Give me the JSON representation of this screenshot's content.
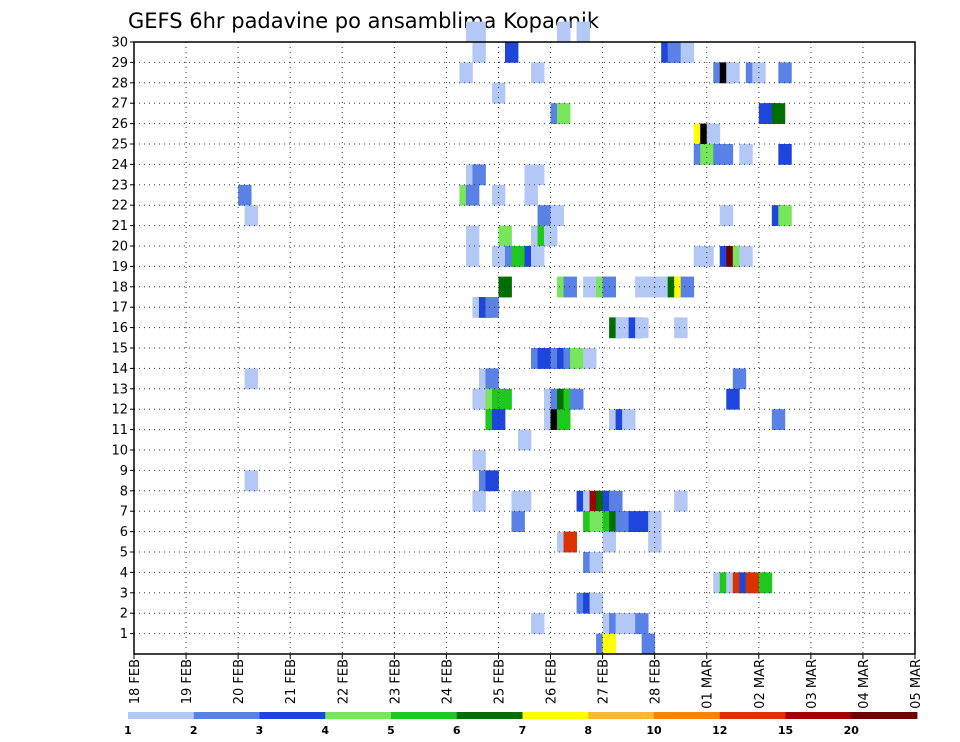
{
  "chart_data": {
    "type": "heatmap",
    "title": "GEFS 6hr padavine po ansamblima Kopaonik",
    "xlabel": "",
    "ylabel": "",
    "x_ticks": [
      "18 FEB",
      "19 FEB",
      "20 FEB",
      "21 FEB",
      "22 FEB",
      "23 FEB",
      "24 FEB",
      "25 FEB",
      "26 FEB",
      "27 FEB",
      "28 FEB",
      "01 MAR",
      "02 MAR",
      "03 MAR",
      "04 MAR",
      "05 MAR"
    ],
    "x_step_hours": 6,
    "y_ticks": [
      1,
      2,
      3,
      4,
      5,
      6,
      7,
      8,
      9,
      10,
      11,
      12,
      13,
      14,
      15,
      16,
      17,
      18,
      19,
      20,
      21,
      22,
      23,
      24,
      25,
      26,
      27,
      28,
      29,
      30
    ],
    "ylim": [
      0,
      30
    ],
    "grid": true,
    "legend": {
      "position": "bottom",
      "labels": [
        "1",
        "2",
        "3",
        "4",
        "5",
        "6",
        "7",
        "8",
        "10",
        "12",
        "15",
        "20"
      ],
      "colors": [
        "#b4c8f5",
        "#5a82e6",
        "#1e46dc",
        "#78e65a",
        "#1ec81e",
        "#006e00",
        "#ffff00",
        "#ffb43c",
        "#ff8200",
        "#dc3200",
        "#a00000",
        "#6e0000"
      ]
    },
    "cells": [
      [
        25.5,
        30,
        1
      ],
      [
        26,
        30,
        1
      ],
      [
        32.5,
        30,
        1
      ],
      [
        34,
        30,
        1
      ],
      [
        26,
        29,
        1
      ],
      [
        28.5,
        29,
        3
      ],
      [
        40.5,
        29,
        3
      ],
      [
        41,
        29,
        2
      ],
      [
        41.5,
        29,
        2
      ],
      [
        42,
        29,
        1
      ],
      [
        25,
        28,
        1
      ],
      [
        30.5,
        28,
        1
      ],
      [
        44.5,
        28,
        2
      ],
      [
        45,
        28,
        14
      ],
      [
        45.5,
        28,
        1
      ],
      [
        47,
        28,
        2
      ],
      [
        47.5,
        28,
        1
      ],
      [
        49.5,
        28,
        2
      ],
      [
        27.5,
        27,
        1
      ],
      [
        32,
        26,
        2
      ],
      [
        32.5,
        26,
        4
      ],
      [
        48,
        26,
        3
      ],
      [
        48.5,
        26,
        3
      ],
      [
        49,
        26,
        6
      ],
      [
        43,
        25,
        7
      ],
      [
        43.5,
        25,
        14
      ],
      [
        44,
        25,
        1
      ],
      [
        43,
        24,
        2
      ],
      [
        43.5,
        24,
        4
      ],
      [
        44,
        24,
        4
      ],
      [
        44.5,
        24,
        2
      ],
      [
        45,
        24,
        2
      ],
      [
        46.5,
        24,
        1
      ],
      [
        49.5,
        24,
        3
      ],
      [
        30,
        23,
        1
      ],
      [
        30.5,
        23,
        1
      ],
      [
        25.5,
        23,
        1
      ],
      [
        26,
        23,
        2
      ],
      [
        30,
        22,
        1
      ],
      [
        8,
        22,
        2
      ],
      [
        25,
        22,
        4
      ],
      [
        25.5,
        22,
        2
      ],
      [
        27.5,
        22,
        1
      ],
      [
        8.5,
        21,
        1
      ],
      [
        31,
        21,
        2
      ],
      [
        31.5,
        21,
        2
      ],
      [
        32,
        21,
        1
      ],
      [
        45,
        21,
        1
      ],
      [
        49,
        21,
        3
      ],
      [
        49.5,
        21,
        4
      ],
      [
        25.5,
        20,
        1
      ],
      [
        28,
        20,
        4
      ],
      [
        30.5,
        20,
        1
      ],
      [
        31,
        20,
        5
      ],
      [
        31.5,
        20,
        1
      ],
      [
        25.5,
        19,
        1
      ],
      [
        27.5,
        19,
        1
      ],
      [
        28,
        19,
        1
      ],
      [
        28.5,
        19,
        2
      ],
      [
        29,
        19,
        5
      ],
      [
        30,
        19,
        3
      ],
      [
        30.5,
        19,
        1
      ],
      [
        43,
        19,
        1
      ],
      [
        43.5,
        19,
        1
      ],
      [
        45,
        19,
        3
      ],
      [
        45.5,
        19,
        12
      ],
      [
        46,
        19,
        4
      ],
      [
        46.5,
        19,
        1
      ],
      [
        28,
        17.5,
        6
      ],
      [
        32.5,
        17.5,
        4
      ],
      [
        33,
        17.5,
        2
      ],
      [
        34.5,
        17.5,
        1
      ],
      [
        35,
        17.5,
        1
      ],
      [
        35.5,
        17.5,
        4
      ],
      [
        36,
        17.5,
        2
      ],
      [
        38.5,
        17.5,
        1
      ],
      [
        39,
        17.5,
        1
      ],
      [
        39.5,
        17.5,
        1
      ],
      [
        40,
        17.5,
        1
      ],
      [
        40.5,
        17.5,
        1
      ],
      [
        41,
        17.5,
        6
      ],
      [
        41.5,
        17.5,
        7
      ],
      [
        42,
        17.5,
        2
      ],
      [
        26,
        16.5,
        1
      ],
      [
        26.5,
        16.5,
        3
      ],
      [
        27,
        16.5,
        2
      ],
      [
        36.5,
        15.5,
        6
      ],
      [
        37,
        15.5,
        1
      ],
      [
        37.5,
        15.5,
        1
      ],
      [
        38,
        15.5,
        3
      ],
      [
        38.5,
        15.5,
        1
      ],
      [
        41.5,
        15.5,
        1
      ],
      [
        30.5,
        14,
        2
      ],
      [
        31,
        14,
        3
      ],
      [
        31.5,
        14,
        3
      ],
      [
        32,
        14,
        2
      ],
      [
        32.5,
        14,
        3
      ],
      [
        33,
        14,
        2
      ],
      [
        33.5,
        14,
        4
      ],
      [
        34.5,
        14,
        1
      ],
      [
        8.5,
        13,
        1
      ],
      [
        26.5,
        13,
        1
      ],
      [
        27,
        13,
        2
      ],
      [
        46,
        13,
        2
      ],
      [
        26,
        12,
        1
      ],
      [
        26.5,
        12,
        1
      ],
      [
        27,
        12,
        4
      ],
      [
        27.5,
        12,
        5
      ],
      [
        28,
        12,
        5
      ],
      [
        31.5,
        12,
        1
      ],
      [
        32,
        12,
        2
      ],
      [
        32.5,
        12,
        6
      ],
      [
        33,
        12,
        5
      ],
      [
        33.5,
        12,
        2
      ],
      [
        45.5,
        12,
        3
      ],
      [
        27,
        11,
        5
      ],
      [
        27.5,
        11,
        3
      ],
      [
        31.5,
        11,
        1
      ],
      [
        32,
        11,
        13
      ],
      [
        32.5,
        11,
        5
      ],
      [
        36.5,
        11,
        1
      ],
      [
        37,
        11,
        3
      ],
      [
        37.5,
        11,
        1
      ],
      [
        49,
        11,
        2
      ],
      [
        29.5,
        10,
        1
      ],
      [
        26,
        9,
        1
      ],
      [
        8.5,
        8,
        1
      ],
      [
        26.5,
        8,
        2
      ],
      [
        27,
        8,
        3
      ],
      [
        26,
        7,
        1
      ],
      [
        29,
        7,
        1
      ],
      [
        29.5,
        7,
        1
      ],
      [
        34,
        7,
        3
      ],
      [
        34.5,
        7,
        1
      ],
      [
        35,
        7,
        11
      ],
      [
        35.5,
        7,
        6
      ],
      [
        36,
        7,
        3
      ],
      [
        36.5,
        7,
        2
      ],
      [
        41.5,
        7,
        1
      ],
      [
        29,
        6,
        2
      ],
      [
        34.5,
        6,
        5
      ],
      [
        35,
        6,
        4
      ],
      [
        35.5,
        6,
        4
      ],
      [
        36,
        6,
        5
      ],
      [
        36.5,
        6,
        6
      ],
      [
        37,
        6,
        2
      ],
      [
        37.5,
        6,
        2
      ],
      [
        38,
        6,
        3
      ],
      [
        38.5,
        6,
        3
      ],
      [
        39,
        6,
        3
      ],
      [
        39.5,
        6,
        1
      ],
      [
        32.5,
        5,
        1
      ],
      [
        33,
        5,
        10
      ],
      [
        36,
        5,
        1
      ],
      [
        39.5,
        5,
        1
      ],
      [
        34.5,
        4,
        2
      ],
      [
        35,
        4,
        1
      ],
      [
        44.5,
        3,
        1
      ],
      [
        45,
        3,
        5
      ],
      [
        45.5,
        3,
        1
      ],
      [
        46,
        3,
        10
      ],
      [
        46.5,
        3,
        3
      ],
      [
        47,
        3,
        10
      ],
      [
        47.5,
        3,
        10
      ],
      [
        48,
        3,
        5
      ],
      [
        34,
        2,
        2
      ],
      [
        34.5,
        2,
        3
      ],
      [
        35,
        2,
        1
      ],
      [
        30.5,
        1,
        1
      ],
      [
        36,
        1,
        1
      ],
      [
        36.5,
        1,
        2
      ],
      [
        37,
        1,
        1
      ],
      [
        37.5,
        1,
        1
      ],
      [
        38,
        1,
        1
      ],
      [
        38.5,
        1,
        2
      ],
      [
        35.5,
        0,
        2
      ],
      [
        36,
        0,
        7
      ],
      [
        39,
        0,
        2
      ]
    ]
  }
}
